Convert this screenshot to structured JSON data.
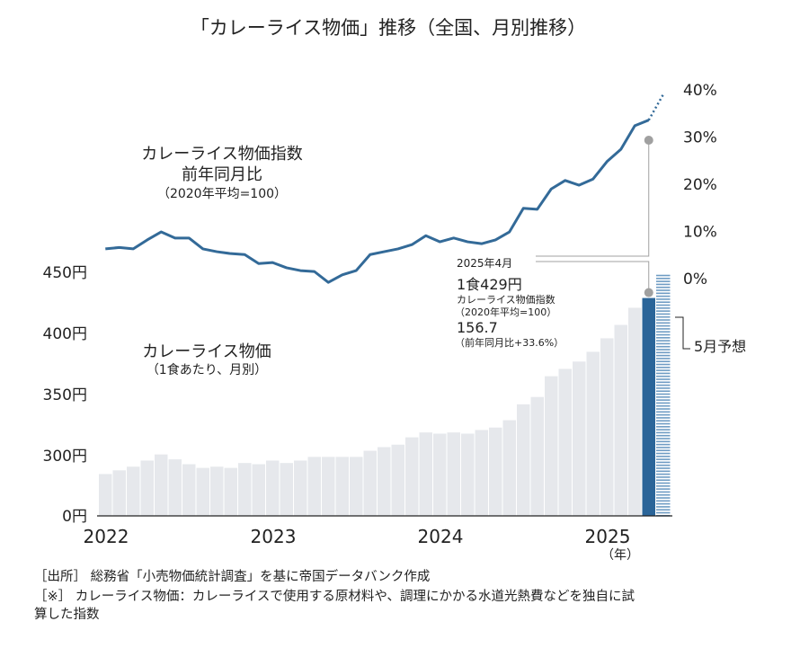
{
  "chart_data": {
    "type": "bar+line",
    "title": "「カレーライス物価」推移（全国、月別推移）",
    "x_unit_label": "（年）",
    "x_tick_labels": [
      "2022",
      "2023",
      "2024",
      "2025"
    ],
    "months": [
      "2022-01",
      "2022-02",
      "2022-03",
      "2022-04",
      "2022-05",
      "2022-06",
      "2022-07",
      "2022-08",
      "2022-09",
      "2022-10",
      "2022-11",
      "2022-12",
      "2023-01",
      "2023-02",
      "2023-03",
      "2023-04",
      "2023-05",
      "2023-06",
      "2023-07",
      "2023-08",
      "2023-09",
      "2023-10",
      "2023-11",
      "2023-12",
      "2024-01",
      "2024-02",
      "2024-03",
      "2024-04",
      "2024-05",
      "2024-06",
      "2024-07",
      "2024-08",
      "2024-09",
      "2024-10",
      "2024-11",
      "2024-12",
      "2025-01",
      "2025-02",
      "2025-03",
      "2025-04"
    ],
    "bar_series": {
      "label": "カレーライス物価",
      "sublabel": "（1食あたり、月別）",
      "axis": "left",
      "values": [
        285,
        288,
        291,
        296,
        301,
        297,
        293,
        290,
        291,
        290,
        294,
        293,
        296,
        294,
        296,
        299,
        299,
        299,
        299,
        304,
        307,
        309,
        315,
        319,
        318,
        319,
        318,
        321,
        323,
        329,
        342,
        348,
        365,
        371,
        377,
        385,
        396,
        407,
        421,
        429
      ],
      "forecast": {
        "month": "2025-05",
        "value": 448,
        "label": "5月予想"
      }
    },
    "line_series": {
      "label": "カレーライス物価指数",
      "label2": "前年同月比",
      "sublabel": "（2020年平均=100）",
      "axis": "right",
      "values": [
        6.3,
        6.6,
        6.3,
        8.2,
        9.9,
        8.6,
        8.6,
        6.3,
        5.7,
        5.3,
        5.1,
        3.2,
        3.4,
        2.3,
        1.7,
        1.5,
        -0.8,
        0.8,
        1.7,
        5.1,
        5.7,
        6.3,
        7.2,
        9.1,
        7.8,
        8.6,
        7.8,
        7.4,
        8.2,
        9.9,
        14.9,
        14.7,
        19.0,
        20.8,
        19.8,
        21.1,
        24.8,
        27.4,
        32.4,
        33.6
      ],
      "forecast_value": 39
    },
    "left_axis": {
      "ticks": [
        0,
        300,
        350,
        400,
        450
      ],
      "tick_labels": [
        "0円",
        "300円",
        "350円",
        "400円",
        "450円"
      ],
      "broken": true
    },
    "right_axis": {
      "ticks": [
        0,
        10,
        20,
        30,
        40
      ],
      "tick_labels": [
        "0%",
        "10%",
        "20%",
        "30%",
        "40%"
      ]
    },
    "annotation": {
      "date": "2025年4月",
      "price": "1食429円",
      "index_label": "カレーライス物価指数",
      "index_base": "（2020年平均=100）",
      "index_value": "156.7",
      "yoy": "（前年同月比+33.6%）"
    },
    "colors": {
      "bar": "#e6e8ec",
      "highlight_bar": "#2b6599",
      "forecast_bar": "#6f9cc4",
      "line": "#336a98",
      "connector": "#a0a0a0"
    }
  },
  "footer": {
    "source": "［出所］ 総務省「小売物価統計調査」を基に帝国データバンク作成",
    "note": "［※］ カレーライス物価：カレーライスで使用する原材料や、調理にかかる水道光熱費などを独自に試",
    "note2": "算した指数"
  }
}
